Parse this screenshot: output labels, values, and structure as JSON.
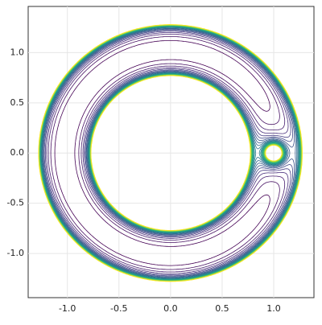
{
  "chart_data": {
    "type": "contour",
    "xlim": [
      -1.38,
      1.39
    ],
    "ylim": [
      -1.44,
      1.46
    ],
    "xticks": [
      {
        "value": -1,
        "label": "-1.0"
      },
      {
        "value": -0.5,
        "label": "-0.5"
      },
      {
        "value": 0,
        "label": "0.0"
      },
      {
        "value": 0.5,
        "label": "0.5"
      },
      {
        "value": 1,
        "label": "1.0"
      }
    ],
    "yticks": [
      {
        "value": -1,
        "label": "-1.0"
      },
      {
        "value": -0.5,
        "label": "-0.5"
      },
      {
        "value": 0,
        "label": "0.0"
      },
      {
        "value": 0.5,
        "label": "0.5"
      },
      {
        "value": 1,
        "label": "1.0"
      }
    ],
    "grid": true,
    "colormap": "viridis",
    "levels": [
      0.14,
      0.16,
      0.18,
      0.2,
      0.22,
      0.24,
      0.26,
      0.28,
      0.3,
      0.32,
      0.34,
      0.36,
      0.38,
      0.4,
      0.42,
      0.44,
      0.46,
      0.48,
      0.5,
      0.52,
      0.54,
      0.56,
      0.58,
      0.6,
      0.62
    ]
  }
}
